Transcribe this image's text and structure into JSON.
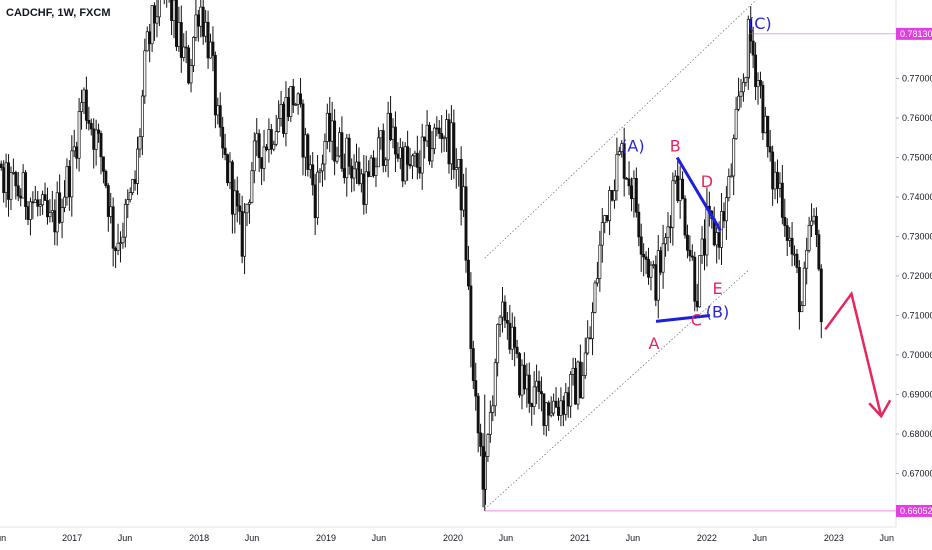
{
  "title": "CADCHF, 1W, FXCM",
  "chart_data": {
    "type": "candlestick",
    "symbol": "CADCHF",
    "timeframe": "1W",
    "source": "FXCM",
    "y_ticks": [
      "0.78130",
      "0.77000",
      "0.76000",
      "0.75000",
      "0.74000",
      "0.73000",
      "0.72000",
      "0.71000",
      "0.70000",
      "0.69000",
      "0.68000",
      "0.67000",
      "0.66052"
    ],
    "y_tick_values": [
      0.7813,
      0.77,
      0.76,
      0.75,
      0.74,
      0.73,
      0.72,
      0.71,
      0.7,
      0.69,
      0.68,
      0.67,
      0.66052
    ],
    "highlighted_levels": [
      0.7813,
      0.66052
    ],
    "x_ticks": [
      "un",
      "2017",
      "Jun",
      "2018",
      "Jun",
      "2019",
      "Jun",
      "2020",
      "Jun",
      "2021",
      "Jun",
      "2022",
      "Jun",
      "2023",
      "Jun"
    ],
    "x_tick_dates": [
      "2016-06",
      "2017-01",
      "2017-06",
      "2018-01",
      "2018-06",
      "2019-01",
      "2019-06",
      "2020-01",
      "2020-06",
      "2021-01",
      "2021-06",
      "2022-01",
      "2022-06",
      "2023-01",
      "2023-06"
    ],
    "ylim": [
      0.66,
      0.793
    ],
    "price_path": [
      [
        "2016-04",
        0.746
      ],
      [
        "2016-06",
        0.744
      ],
      [
        "2016-09",
        0.74
      ],
      [
        "2016-11",
        0.732
      ],
      [
        "2017-01",
        0.748
      ],
      [
        "2017-02",
        0.766
      ],
      [
        "2017-04",
        0.748
      ],
      [
        "2017-05",
        0.728
      ],
      [
        "2017-06",
        0.734
      ],
      [
        "2017-07",
        0.744
      ],
      [
        "2017-08",
        0.776
      ],
      [
        "2017-09",
        0.788
      ],
      [
        "2017-10",
        0.792
      ],
      [
        "2017-11",
        0.78
      ],
      [
        "2017-12",
        0.772
      ],
      [
        "2018-01",
        0.79
      ],
      [
        "2018-02",
        0.778
      ],
      [
        "2018-03",
        0.752
      ],
      [
        "2018-04",
        0.744
      ],
      [
        "2018-05",
        0.728
      ],
      [
        "2018-06",
        0.748
      ],
      [
        "2018-08",
        0.758
      ],
      [
        "2018-10",
        0.766
      ],
      [
        "2018-12",
        0.74
      ],
      [
        "2019-01",
        0.756
      ],
      [
        "2019-03",
        0.75
      ],
      [
        "2019-05",
        0.742
      ],
      [
        "2019-06",
        0.752
      ],
      [
        "2019-07",
        0.756
      ],
      [
        "2019-09",
        0.746
      ],
      [
        "2019-11",
        0.754
      ],
      [
        "2019-12",
        0.758
      ],
      [
        "2020-01",
        0.752
      ],
      [
        "2020-02",
        0.738
      ],
      [
        "2020-03",
        0.688
      ],
      [
        "2020-04",
        0.667
      ],
      [
        "2020-05",
        0.7
      ],
      [
        "2020-06",
        0.712
      ],
      [
        "2020-07",
        0.696
      ],
      [
        "2020-09",
        0.688
      ],
      [
        "2020-11",
        0.688
      ],
      [
        "2020-12",
        0.69
      ],
      [
        "2021-01",
        0.694
      ],
      [
        "2021-02",
        0.705
      ],
      [
        "2021-03",
        0.73
      ],
      [
        "2021-04",
        0.745
      ],
      [
        "2021-05",
        0.751
      ],
      [
        "2021-06",
        0.742
      ],
      [
        "2021-07",
        0.728
      ],
      [
        "2021-08",
        0.718
      ],
      [
        "2021-09",
        0.726
      ],
      [
        "2021-10",
        0.748
      ],
      [
        "2021-11",
        0.734
      ],
      [
        "2021-12",
        0.716
      ],
      [
        "2022-01",
        0.732
      ],
      [
        "2022-02",
        0.73
      ],
      [
        "2022-03",
        0.74
      ],
      [
        "2022-04",
        0.762
      ],
      [
        "2022-05",
        0.781
      ],
      [
        "2022-06",
        0.768
      ],
      [
        "2022-07",
        0.746
      ],
      [
        "2022-08",
        0.742
      ],
      [
        "2022-09",
        0.726
      ],
      [
        "2022-10",
        0.712
      ],
      [
        "2022-11",
        0.736
      ],
      [
        "2022-12",
        0.708
      ]
    ],
    "annotations": [
      {
        "label": "(A)",
        "color": "#2a24d6",
        "date": "2021-06",
        "price": 0.7515
      },
      {
        "label": "(B)",
        "color": "#2a24d6",
        "date": "2022-02",
        "price": 0.7095
      },
      {
        "label": "(C)",
        "color": "#2a24d6",
        "date": "2022-06",
        "price": 0.7825
      },
      {
        "label": "A",
        "color": "#e6275c",
        "date": "2021-08",
        "price": 0.7015
      },
      {
        "label": "B",
        "color": "#e6275c",
        "date": "2021-10",
        "price": 0.7515
      },
      {
        "label": "C",
        "color": "#e6275c",
        "date": "2021-12",
        "price": 0.7075
      },
      {
        "label": "D",
        "color": "#e6275c",
        "date": "2022-01",
        "price": 0.7425
      },
      {
        "label": "E",
        "color": "#e6275c",
        "date": "2022-02",
        "price": 0.7155
      }
    ],
    "legend": "none",
    "grid": false
  }
}
